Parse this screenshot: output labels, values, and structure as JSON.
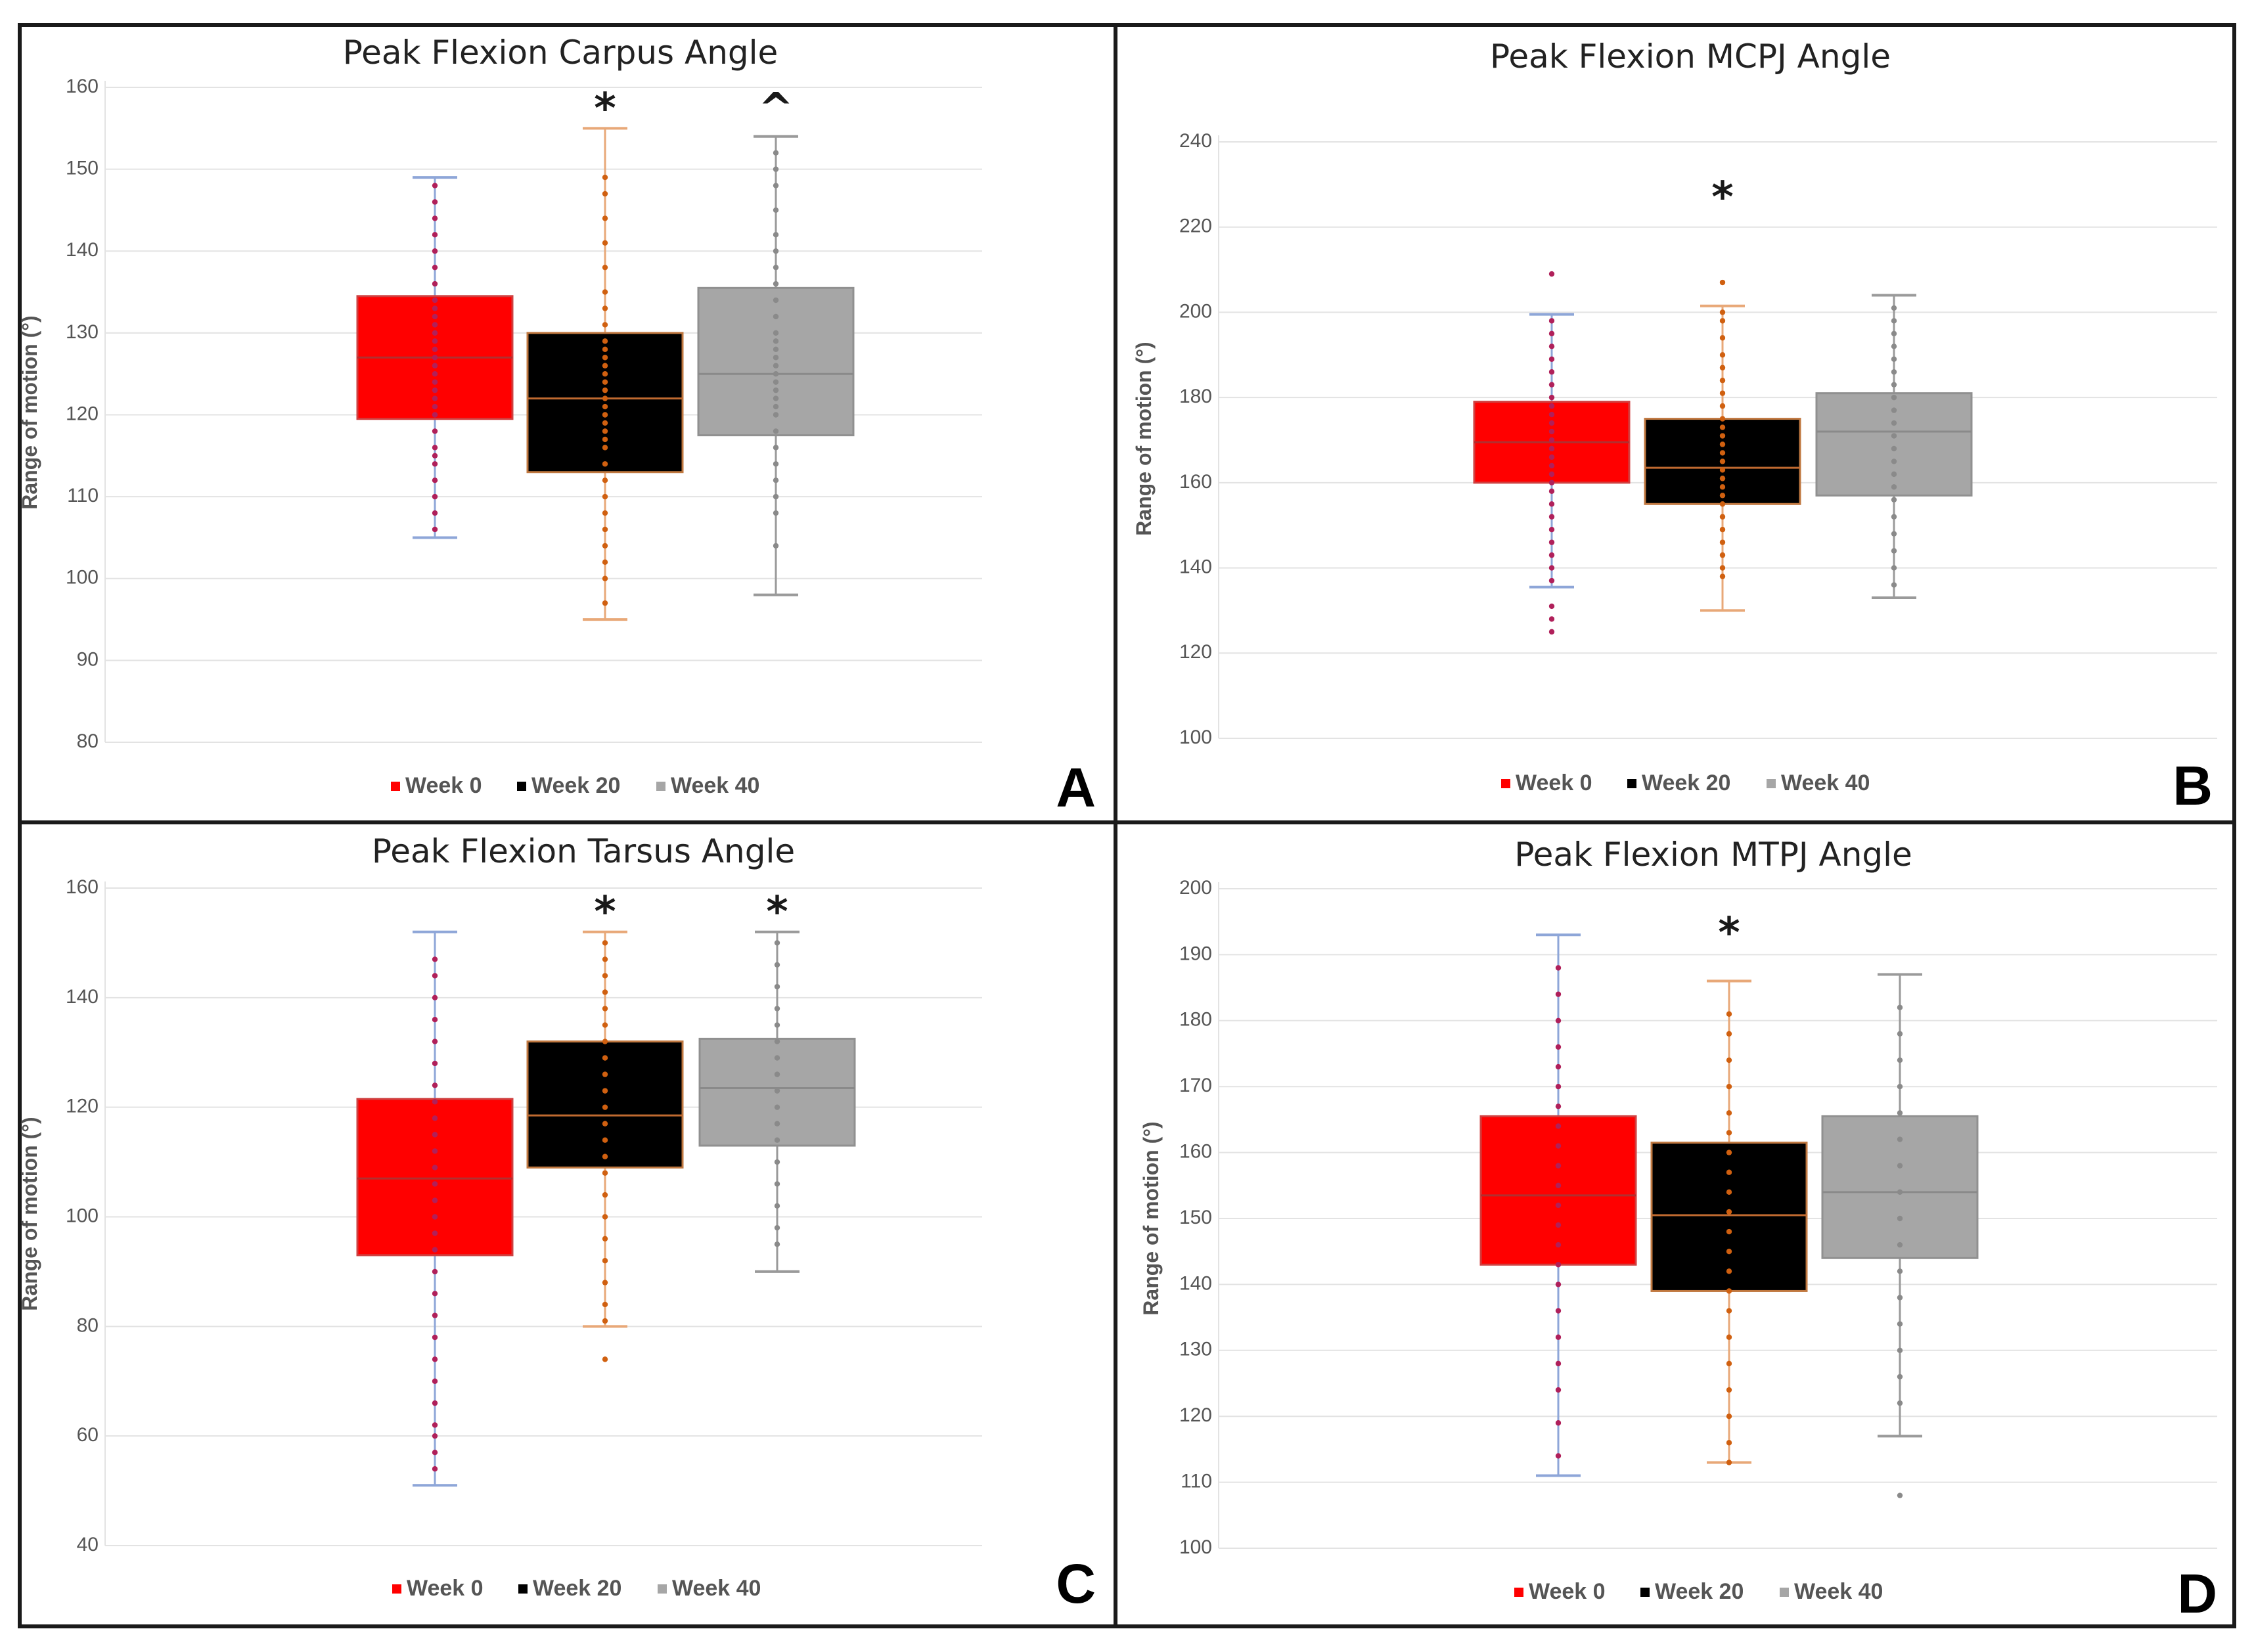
{
  "chart_data": [
    {
      "panel": "A",
      "type": "box",
      "title": "Peak Flexion Carpus Angle",
      "ylabel": "Range of motion (°)",
      "ylim": [
        80,
        160
      ],
      "yticks": [
        80,
        90,
        100,
        110,
        120,
        130,
        140,
        150,
        160
      ],
      "legend": [
        "Week 0",
        "Week 20",
        "Week 40"
      ],
      "series": [
        {
          "name": "Week 0",
          "min": 105,
          "q1": 119.5,
          "median": 127,
          "q3": 134.5,
          "max": 149,
          "sig": "",
          "points": [
            106,
            108,
            110,
            112,
            114,
            115,
            116,
            118,
            120,
            121,
            122,
            123,
            124,
            125,
            126,
            127,
            128,
            129,
            130,
            131,
            132,
            133,
            134,
            136,
            138,
            140,
            142,
            144,
            146,
            148
          ]
        },
        {
          "name": "Week 20",
          "min": 95,
          "q1": 113,
          "median": 122,
          "q3": 130,
          "max": 155,
          "sig": "*",
          "points": [
            97,
            100,
            102,
            104,
            106,
            108,
            110,
            112,
            114,
            116,
            117,
            118,
            119,
            120,
            121,
            122,
            123,
            124,
            125,
            126,
            127,
            128,
            129,
            131,
            133,
            135,
            138,
            141,
            144,
            147,
            149
          ]
        },
        {
          "name": "Week 40",
          "min": 98,
          "q1": 117.5,
          "median": 125,
          "q3": 135.5,
          "max": 154,
          "sig": "^",
          "points": [
            104,
            108,
            110,
            112,
            114,
            116,
            118,
            120,
            121,
            122,
            123,
            124,
            125,
            126,
            127,
            128,
            129,
            130,
            132,
            134,
            136,
            138,
            140,
            142,
            145,
            148,
            150,
            152
          ]
        }
      ]
    },
    {
      "panel": "B",
      "type": "box",
      "title": "Peak Flexion MCPJ Angle",
      "ylabel": "Range of motion (°)",
      "ylim": [
        100,
        240
      ],
      "yticks": [
        100,
        120,
        140,
        160,
        180,
        200,
        220,
        240
      ],
      "legend": [
        "Week 0",
        "Week 20",
        "Week 40"
      ],
      "series": [
        {
          "name": "Week 0",
          "min": 135.5,
          "q1": 160,
          "median": 169.5,
          "q3": 179,
          "max": 199.5,
          "sig": "",
          "points": [
            125,
            128,
            131,
            137,
            140,
            143,
            146,
            149,
            152,
            155,
            158,
            160,
            162,
            164,
            166,
            168,
            170,
            172,
            174,
            176,
            178,
            180,
            183,
            186,
            189,
            192,
            195,
            198,
            209
          ]
        },
        {
          "name": "Week 20",
          "min": 130,
          "q1": 155,
          "median": 163.5,
          "q3": 175,
          "max": 201.5,
          "sig": "*",
          "points": [
            138,
            140,
            143,
            146,
            149,
            152,
            155,
            157,
            159,
            161,
            163,
            165,
            167,
            169,
            171,
            173,
            175,
            178,
            181,
            184,
            187,
            190,
            194,
            198,
            200,
            207
          ]
        },
        {
          "name": "Week 40",
          "min": 133,
          "q1": 157,
          "median": 172,
          "q3": 181,
          "max": 204,
          "sig": "",
          "points": [
            136,
            140,
            144,
            148,
            152,
            156,
            159,
            162,
            165,
            168,
            171,
            174,
            177,
            180,
            183,
            186,
            189,
            192,
            195,
            198,
            201
          ]
        }
      ]
    },
    {
      "panel": "C",
      "type": "box",
      "title": "Peak Flexion Tarsus Angle",
      "ylabel": "Range of motion (°)",
      "ylim": [
        40,
        160
      ],
      "yticks": [
        40,
        60,
        80,
        100,
        120,
        140,
        160
      ],
      "legend": [
        "Week 0",
        "Week 20",
        "Week 40"
      ],
      "series": [
        {
          "name": "Week 0",
          "min": 51,
          "q1": 93,
          "median": 107,
          "q3": 121.5,
          "max": 152,
          "sig": "",
          "points": [
            54,
            57,
            60,
            62,
            66,
            70,
            74,
            78,
            82,
            86,
            90,
            94,
            97,
            100,
            103,
            106,
            109,
            112,
            115,
            118,
            121,
            124,
            128,
            132,
            136,
            140,
            144,
            147
          ]
        },
        {
          "name": "Week 20",
          "min": 80,
          "q1": 109,
          "median": 118.5,
          "q3": 132,
          "max": 152,
          "sig": "*",
          "points": [
            74,
            81,
            84,
            88,
            92,
            96,
            100,
            104,
            108,
            111,
            114,
            117,
            120,
            123,
            126,
            129,
            132,
            135,
            138,
            141,
            144,
            147,
            150
          ]
        },
        {
          "name": "Week 40",
          "min": 90,
          "q1": 113,
          "median": 123.5,
          "q3": 132.5,
          "max": 152,
          "sig": "*",
          "points": [
            95,
            98,
            102,
            106,
            110,
            114,
            117,
            120,
            123,
            126,
            129,
            132,
            135,
            138,
            142,
            146,
            150
          ]
        }
      ]
    },
    {
      "panel": "D",
      "type": "box",
      "title": "Peak Flexion MTPJ Angle",
      "ylabel": "Range of motion (°)",
      "ylim": [
        100,
        200
      ],
      "yticks": [
        100,
        110,
        120,
        130,
        140,
        150,
        160,
        170,
        180,
        190,
        200
      ],
      "legend": [
        "Week 0",
        "Week 20",
        "Week 40"
      ],
      "series": [
        {
          "name": "Week 0",
          "min": 111,
          "q1": 143,
          "median": 153.5,
          "q3": 165.5,
          "max": 193,
          "sig": "",
          "points": [
            114,
            119,
            124,
            128,
            132,
            136,
            140,
            143,
            146,
            149,
            152,
            155,
            158,
            161,
            164,
            167,
            170,
            173,
            176,
            180,
            184,
            188
          ]
        },
        {
          "name": "Week 20",
          "min": 113,
          "q1": 139,
          "median": 150.5,
          "q3": 161.5,
          "max": 186,
          "sig": "*",
          "points": [
            113,
            116,
            120,
            124,
            128,
            132,
            136,
            139,
            142,
            145,
            148,
            151,
            154,
            157,
            160,
            163,
            166,
            170,
            174,
            178,
            181
          ]
        },
        {
          "name": "Week 40",
          "min": 117,
          "q1": 144,
          "median": 154,
          "q3": 165.5,
          "max": 187,
          "sig": "",
          "points": [
            108,
            122,
            126,
            130,
            134,
            138,
            142,
            146,
            150,
            154,
            158,
            162,
            166,
            170,
            174,
            178,
            182
          ]
        }
      ]
    }
  ],
  "colors": {
    "week0": "#ff0000",
    "week20": "#000000",
    "week40": "#a6a6a6",
    "week0_whisker": "#8ea6d8",
    "week20_whisker": "#e8a878",
    "week40_whisker": "#9a9a9a",
    "week0_points": "#b0205a",
    "week20_points": "#d06010",
    "week40_points": "#8a8a8a"
  }
}
